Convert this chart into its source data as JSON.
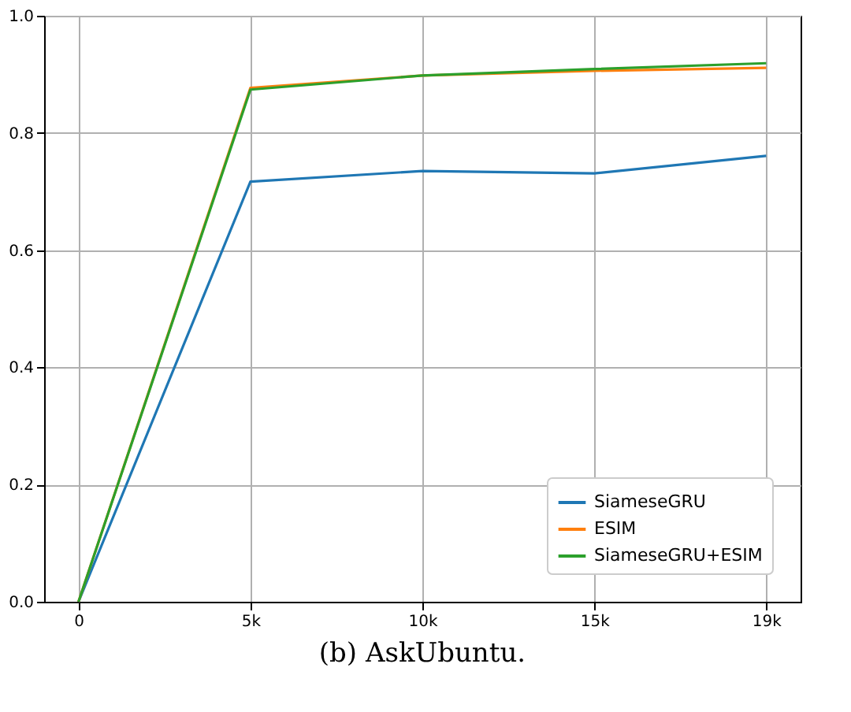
{
  "chart_data": {
    "type": "line",
    "categories": [
      "0",
      "5k",
      "10k",
      "15k",
      "19k"
    ],
    "series": [
      {
        "name": "SiameseGRU",
        "color": "#1f77b4",
        "values": [
          0,
          0.717,
          0.735,
          0.731,
          0.761
        ]
      },
      {
        "name": "ESIM",
        "color": "#ff7f0e",
        "values": [
          0,
          0.877,
          0.898,
          0.906,
          0.911
        ]
      },
      {
        "name": "SiameseGRU+ESIM",
        "color": "#2ca02c",
        "values": [
          0,
          0.874,
          0.898,
          0.909,
          0.919
        ]
      }
    ],
    "ylim": [
      0,
      1.0
    ],
    "yticks": [
      {
        "value": 0,
        "label": "0.0"
      },
      0.2,
      0.4,
      0.6,
      0.8,
      {
        "value": 1.0,
        "label": "1.0"
      }
    ],
    "grid": true,
    "legend": "bottom right",
    "line_style": "solid",
    "marker": "none",
    "annotations": [
      "(b) AskUbuntu."
    ]
  }
}
